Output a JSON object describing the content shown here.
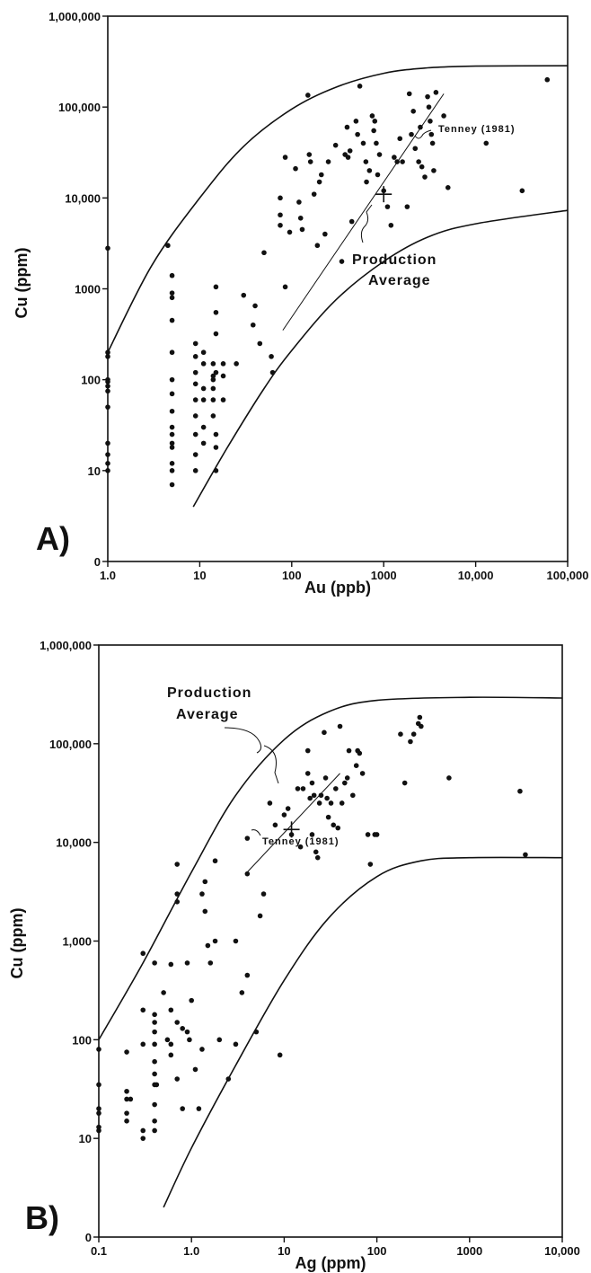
{
  "chart_data": [
    {
      "type": "scatter",
      "panel_label": "A)",
      "xlabel": "Au (ppb)",
      "ylabel": "Cu (ppm)",
      "x_scale": "log",
      "y_scale": "log",
      "xlim": [
        1,
        100000
      ],
      "ylim": [
        1,
        1000000
      ],
      "x_ticks": [
        {
          "value": 1,
          "label": "1.0"
        },
        {
          "value": 10,
          "label": "10"
        },
        {
          "value": 100,
          "label": "100"
        },
        {
          "value": 1000,
          "label": "1000"
        },
        {
          "value": 10000,
          "label": "10,000"
        },
        {
          "value": 100000,
          "label": "100,000"
        }
      ],
      "y_ticks": [
        {
          "value": 1,
          "label": "0"
        },
        {
          "value": 10,
          "label": "10"
        },
        {
          "value": 100,
          "label": "100"
        },
        {
          "value": 1000,
          "label": "1000"
        },
        {
          "value": 10000,
          "label": "10,000"
        },
        {
          "value": 100000,
          "label": "100,000"
        },
        {
          "value": 1000000,
          "label": "1,000,000"
        }
      ],
      "grid": false,
      "points": [
        [
          1,
          2800
        ],
        [
          1,
          200
        ],
        [
          1,
          180
        ],
        [
          1,
          100
        ],
        [
          1,
          95
        ],
        [
          1,
          85
        ],
        [
          1,
          75
        ],
        [
          1,
          50
        ],
        [
          1,
          20
        ],
        [
          1,
          15
        ],
        [
          1,
          12
        ],
        [
          1,
          10
        ],
        [
          4.5,
          3000
        ],
        [
          5,
          1400
        ],
        [
          5,
          900
        ],
        [
          5,
          800
        ],
        [
          5,
          450
        ],
        [
          5,
          200
        ],
        [
          5,
          100
        ],
        [
          5,
          70
        ],
        [
          5,
          45
        ],
        [
          5,
          30
        ],
        [
          5,
          25
        ],
        [
          5,
          20
        ],
        [
          5,
          18
        ],
        [
          5,
          12
        ],
        [
          5,
          10
        ],
        [
          5,
          7
        ],
        [
          9,
          250
        ],
        [
          9,
          180
        ],
        [
          9,
          120
        ],
        [
          9,
          90
        ],
        [
          9,
          60
        ],
        [
          9,
          40
        ],
        [
          9,
          25
        ],
        [
          9,
          15
        ],
        [
          9,
          10
        ],
        [
          11,
          200
        ],
        [
          11,
          150
        ],
        [
          11,
          80
        ],
        [
          11,
          60
        ],
        [
          11,
          30
        ],
        [
          11,
          20
        ],
        [
          14,
          150
        ],
        [
          14,
          110
        ],
        [
          14,
          100
        ],
        [
          14,
          80
        ],
        [
          14,
          60
        ],
        [
          14,
          40
        ],
        [
          15,
          1050
        ],
        [
          15,
          550
        ],
        [
          15,
          320
        ],
        [
          15,
          120
        ],
        [
          15,
          25
        ],
        [
          15,
          18
        ],
        [
          15,
          10
        ],
        [
          18,
          150
        ],
        [
          18,
          110
        ],
        [
          18,
          60
        ],
        [
          25,
          150
        ],
        [
          30,
          850
        ],
        [
          38,
          400
        ],
        [
          40,
          650
        ],
        [
          45,
          250
        ],
        [
          50,
          2500
        ],
        [
          60,
          180
        ],
        [
          62,
          120
        ],
        [
          75,
          5000
        ],
        [
          75,
          6500
        ],
        [
          75,
          10000
        ],
        [
          85,
          1050
        ],
        [
          85,
          28000
        ],
        [
          95,
          4200
        ],
        [
          110,
          21000
        ],
        [
          120,
          9000
        ],
        [
          125,
          6000
        ],
        [
          130,
          4500
        ],
        [
          150,
          135000
        ],
        [
          155,
          30000
        ],
        [
          160,
          25000
        ],
        [
          175,
          11000
        ],
        [
          190,
          3000
        ],
        [
          200,
          15000
        ],
        [
          210,
          18000
        ],
        [
          230,
          4000
        ],
        [
          250,
          25000
        ],
        [
          300,
          38000
        ],
        [
          350,
          2000
        ],
        [
          380,
          30000
        ],
        [
          400,
          60000
        ],
        [
          410,
          28000
        ],
        [
          430,
          33000
        ],
        [
          450,
          5500
        ],
        [
          500,
          70000
        ],
        [
          520,
          50000
        ],
        [
          550,
          170000
        ],
        [
          600,
          40000
        ],
        [
          640,
          25000
        ],
        [
          650,
          15000
        ],
        [
          700,
          20000
        ],
        [
          750,
          80000
        ],
        [
          780,
          55000
        ],
        [
          800,
          70000
        ],
        [
          830,
          40000
        ],
        [
          860,
          18000
        ],
        [
          900,
          30000
        ],
        [
          1000,
          12000
        ],
        [
          1100,
          8000
        ],
        [
          1200,
          5000
        ],
        [
          1300,
          28000
        ],
        [
          1400,
          25000
        ],
        [
          1500,
          45000
        ],
        [
          1600,
          25000
        ],
        [
          1800,
          8000
        ],
        [
          1900,
          140000
        ],
        [
          2000,
          50000
        ],
        [
          2100,
          90000
        ],
        [
          2200,
          35000
        ],
        [
          2400,
          25000
        ],
        [
          2500,
          60000
        ],
        [
          2600,
          22000
        ],
        [
          2800,
          17000
        ],
        [
          3000,
          130000
        ],
        [
          3100,
          100000
        ],
        [
          3200,
          70000
        ],
        [
          3300,
          50000
        ],
        [
          3400,
          40000
        ],
        [
          3500,
          20000
        ],
        [
          3700,
          145000
        ],
        [
          4500,
          80000
        ],
        [
          5000,
          13000
        ],
        [
          13000,
          40000
        ],
        [
          32000,
          12000
        ],
        [
          60000,
          200000
        ]
      ],
      "production_average": [
        1000,
        11000
      ],
      "envelope_upper": [
        [
          1,
          200
        ],
        [
          3,
          1800
        ],
        [
          10,
          10000
        ],
        [
          30,
          37000
        ],
        [
          100,
          95000
        ],
        [
          300,
          165000
        ],
        [
          1000,
          235000
        ],
        [
          3000,
          270000
        ],
        [
          10000,
          282000
        ],
        [
          100000,
          285000
        ]
      ],
      "envelope_lower": [
        [
          8.5,
          4
        ],
        [
          20,
          18
        ],
        [
          50,
          80
        ],
        [
          100,
          210
        ],
        [
          300,
          750
        ],
        [
          1000,
          2000
        ],
        [
          3000,
          3700
        ],
        [
          10000,
          5200
        ],
        [
          100000,
          7300
        ]
      ],
      "trend_line": [
        [
          80,
          350
        ],
        [
          4500,
          140000
        ]
      ],
      "annotations": {
        "production": "Production",
        "average": "Average",
        "tenney": "Tenney (1981)"
      }
    },
    {
      "type": "scatter",
      "panel_label": "B)",
      "xlabel": "Ag (ppm)",
      "ylabel": "Cu (ppm)",
      "x_scale": "log",
      "y_scale": "log",
      "xlim": [
        0.1,
        10000
      ],
      "ylim": [
        1,
        1000000
      ],
      "x_ticks": [
        {
          "value": 0.1,
          "label": "0.1"
        },
        {
          "value": 1,
          "label": "1.0"
        },
        {
          "value": 10,
          "label": "10"
        },
        {
          "value": 100,
          "label": "100"
        },
        {
          "value": 1000,
          "label": "1000"
        },
        {
          "value": 10000,
          "label": "10,000"
        }
      ],
      "y_ticks": [
        {
          "value": 1,
          "label": "0"
        },
        {
          "value": 10,
          "label": "10"
        },
        {
          "value": 100,
          "label": "100"
        },
        {
          "value": 1000,
          "label": "1,000"
        },
        {
          "value": 10000,
          "label": "10,000"
        },
        {
          "value": 100000,
          "label": "100,000"
        },
        {
          "value": 1000000,
          "label": "1,000,000"
        }
      ],
      "grid": false,
      "points": [
        [
          0.1,
          80
        ],
        [
          0.1,
          35
        ],
        [
          0.1,
          20
        ],
        [
          0.1,
          18
        ],
        [
          0.1,
          13
        ],
        [
          0.1,
          12
        ],
        [
          0.2,
          75
        ],
        [
          0.2,
          30
        ],
        [
          0.2,
          25
        ],
        [
          0.2,
          18
        ],
        [
          0.2,
          15
        ],
        [
          0.22,
          25
        ],
        [
          0.3,
          750
        ],
        [
          0.3,
          200
        ],
        [
          0.3,
          90
        ],
        [
          0.3,
          12
        ],
        [
          0.3,
          10
        ],
        [
          0.4,
          600
        ],
        [
          0.4,
          180
        ],
        [
          0.4,
          150
        ],
        [
          0.4,
          120
        ],
        [
          0.4,
          90
        ],
        [
          0.4,
          60
        ],
        [
          0.4,
          45
        ],
        [
          0.4,
          35
        ],
        [
          0.4,
          22
        ],
        [
          0.4,
          15
        ],
        [
          0.4,
          12
        ],
        [
          0.42,
          35
        ],
        [
          0.5,
          300
        ],
        [
          0.55,
          100
        ],
        [
          0.6,
          580
        ],
        [
          0.6,
          200
        ],
        [
          0.6,
          90
        ],
        [
          0.6,
          70
        ],
        [
          0.7,
          6000
        ],
        [
          0.7,
          3000
        ],
        [
          0.7,
          2500
        ],
        [
          0.7,
          150
        ],
        [
          0.7,
          40
        ],
        [
          0.8,
          130
        ],
        [
          0.8,
          20
        ],
        [
          0.9,
          600
        ],
        [
          0.9,
          120
        ],
        [
          0.95,
          100
        ],
        [
          1,
          250
        ],
        [
          1.1,
          50
        ],
        [
          1.2,
          20
        ],
        [
          1.3,
          3000
        ],
        [
          1.3,
          80
        ],
        [
          1.4,
          4000
        ],
        [
          1.4,
          2000
        ],
        [
          1.5,
          900
        ],
        [
          1.6,
          600
        ],
        [
          1.8,
          6500
        ],
        [
          1.8,
          1000
        ],
        [
          2,
          100
        ],
        [
          2.5,
          40
        ],
        [
          3,
          1000
        ],
        [
          3,
          90
        ],
        [
          3.5,
          300
        ],
        [
          4,
          11000
        ],
        [
          4,
          450
        ],
        [
          4,
          4800
        ],
        [
          5,
          120
        ],
        [
          5.5,
          1800
        ],
        [
          6,
          3000
        ],
        [
          7,
          25000
        ],
        [
          8,
          15000
        ],
        [
          9,
          70
        ],
        [
          10,
          19000
        ],
        [
          11,
          22000
        ],
        [
          12,
          12000
        ],
        [
          14,
          35000
        ],
        [
          15,
          9000
        ],
        [
          16,
          35000
        ],
        [
          18,
          85000
        ],
        [
          18,
          50000
        ],
        [
          19,
          28000
        ],
        [
          20,
          40000
        ],
        [
          20,
          12000
        ],
        [
          21,
          30000
        ],
        [
          22,
          8000
        ],
        [
          23,
          7000
        ],
        [
          24,
          25000
        ],
        [
          25,
          30000
        ],
        [
          27,
          130000
        ],
        [
          28,
          45000
        ],
        [
          29,
          28000
        ],
        [
          30,
          18000
        ],
        [
          32,
          25000
        ],
        [
          34,
          15000
        ],
        [
          36,
          35000
        ],
        [
          38,
          14000
        ],
        [
          40,
          150000
        ],
        [
          42,
          25000
        ],
        [
          45,
          40000
        ],
        [
          48,
          45000
        ],
        [
          50,
          85000
        ],
        [
          55,
          30000
        ],
        [
          60,
          60000
        ],
        [
          62,
          85000
        ],
        [
          65,
          80000
        ],
        [
          70,
          50000
        ],
        [
          80,
          12000
        ],
        [
          85,
          6000
        ],
        [
          95,
          12000
        ],
        [
          100,
          12000
        ],
        [
          180,
          125000
        ],
        [
          200,
          40000
        ],
        [
          230,
          105000
        ],
        [
          250,
          125000
        ],
        [
          280,
          160000
        ],
        [
          290,
          185000
        ],
        [
          300,
          150000
        ],
        [
          600,
          45000
        ],
        [
          3500,
          33000
        ],
        [
          4000,
          7500
        ]
      ],
      "production_average": [
        12,
        13500
      ],
      "envelope_upper": [
        [
          0.1,
          100
        ],
        [
          0.3,
          600
        ],
        [
          1,
          5000
        ],
        [
          3,
          30000
        ],
        [
          10,
          110000
        ],
        [
          30,
          210000
        ],
        [
          100,
          275000
        ],
        [
          1000,
          295000
        ],
        [
          10000,
          290000
        ]
      ],
      "envelope_lower": [
        [
          0.5,
          2
        ],
        [
          1,
          8
        ],
        [
          3,
          55
        ],
        [
          10,
          400
        ],
        [
          30,
          1700
        ],
        [
          100,
          4500
        ],
        [
          300,
          6500
        ],
        [
          1000,
          7000
        ],
        [
          10000,
          7000
        ]
      ],
      "trend_line": [
        [
          4,
          5000
        ],
        [
          40,
          50000
        ]
      ],
      "annotations": {
        "production": "Production",
        "average": "Average",
        "tenney": "Tenney (1981)"
      }
    }
  ]
}
